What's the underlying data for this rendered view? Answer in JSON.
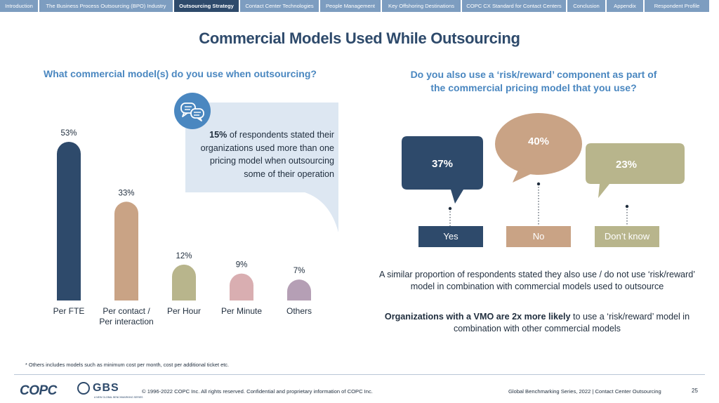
{
  "nav": {
    "tabs": [
      {
        "label": "Introduction",
        "active": false
      },
      {
        "label": "The Business Process Outsourcing (BPO) Industry",
        "active": false
      },
      {
        "label": "Outsourcing Strategy",
        "active": true
      },
      {
        "label": "Contact Center Technologies",
        "active": false
      },
      {
        "label": "People Management",
        "active": false
      },
      {
        "label": "Key Offshoring Destinations",
        "active": false
      },
      {
        "label": "COPC CX Standard for Contact Centers",
        "active": false
      },
      {
        "label": "Conclusion",
        "active": false
      },
      {
        "label": "Appendix",
        "active": false
      },
      {
        "label": "Respondent Profile",
        "active": false
      }
    ]
  },
  "page_title": "Commercial Models Used While Outsourcing",
  "left": {
    "heading": "What commercial model(s) do you use when outsourcing?",
    "callout": {
      "highlight": "15%",
      "text": " of respondents stated their organizations used more than one pricing model when outsourcing some of their operation"
    },
    "footnote": "* Others includes models such as minimum cost per month, cost per additional ticket etc."
  },
  "chart_data": {
    "type": "bar",
    "categories": [
      "Per FTE",
      "Per contact / Per interaction",
      "Per Hour",
      "Per Minute",
      "Others"
    ],
    "category_lines": [
      [
        "Per FTE"
      ],
      [
        "Per contact /",
        "Per interaction"
      ],
      [
        "Per Hour"
      ],
      [
        "Per Minute"
      ],
      [
        "Others"
      ]
    ],
    "values": [
      53,
      33,
      12,
      9,
      7
    ],
    "value_labels": [
      "53%",
      "33%",
      "12%",
      "9%",
      "7%"
    ],
    "colors": [
      "#2e4a6b",
      "#c9a385",
      "#b8b58c",
      "#d9aeb1",
      "#b59fb5"
    ],
    "unit": "%",
    "ylim": [
      0,
      53
    ]
  },
  "right": {
    "heading_line1": "Do you also use a ‘risk/reward’ component as part of",
    "heading_line2": "the commercial pricing model that you use?",
    "answers": [
      {
        "label": "Yes",
        "value": 37,
        "value_label": "37%",
        "color": "#2e4a6b"
      },
      {
        "label": "No",
        "value": 40,
        "value_label": "40%",
        "color": "#c9a385"
      },
      {
        "label": "Don’t know",
        "value": 23,
        "value_label": "23%",
        "color": "#b8b58c"
      }
    ],
    "note1": "A similar proportion of respondents stated they also use / do not use ‘risk/reward’ model in combination with commercial models used to outsource",
    "note2_bold": "Organizations with a VMO are 2x more likely",
    "note2_rest": " to use a ‘risk/reward’ model in combination with other commercial models"
  },
  "footer": {
    "logo_copc": "COPC",
    "logo_gbs": "GBS",
    "logo_gbs_sub": "A NEW GLOBAL BENCHMARKING SERIES",
    "copyright": "© 1996-2022 COPC Inc. All rights reserved. Confidential and proprietary information of COPC Inc.",
    "series": "Global Benchmarking Series, 2022  |  Contact Center Outsourcing",
    "page_number": "25"
  },
  "icons": {
    "callout_icon": "chat-bubbles-icon"
  }
}
